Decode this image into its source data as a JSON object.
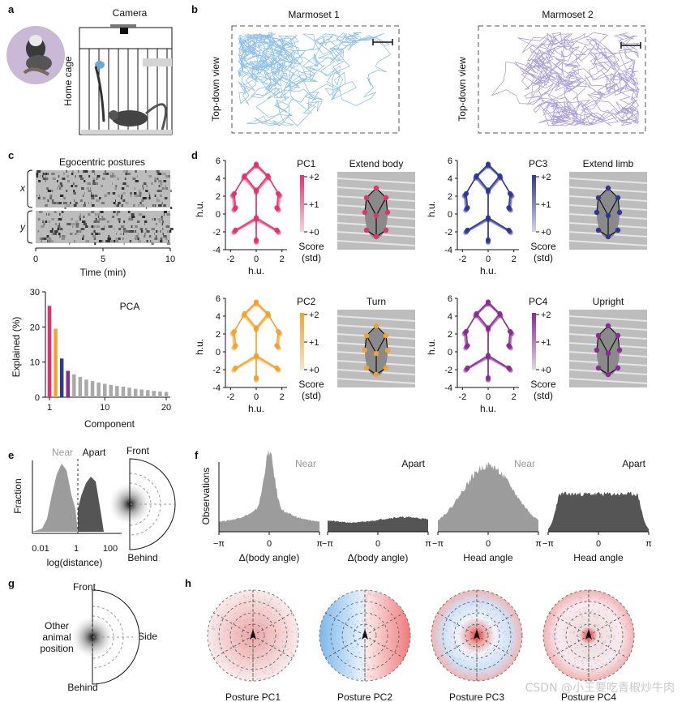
{
  "panels": {
    "a": {
      "letter": "a",
      "camera_label": "Camera",
      "cage_label": "Home cage"
    },
    "b": {
      "letter": "b",
      "titles": [
        "Marmoset 1",
        "Marmoset 2"
      ],
      "view_label": "Top-down view",
      "colors": [
        "#7fb6e3",
        "#9d8fd0"
      ]
    },
    "c": {
      "letter": "c",
      "title": "Egocentric postures",
      "row_labels": [
        "x",
        "y"
      ],
      "x_ticks": [
        "0",
        "5",
        "10"
      ],
      "x_label": "Time (min)"
    },
    "d": {
      "letter": "d",
      "y_label": "h.u.",
      "x_label": "h.u.",
      "y_ticks": [
        "6",
        "4",
        "2",
        "0",
        "-2",
        "-4"
      ],
      "x_ticks": [
        "-2",
        "0",
        "2"
      ],
      "score_label": "Score",
      "std_label": "(std)",
      "score_ticks": [
        "+2",
        "+1",
        "+0"
      ],
      "components": [
        {
          "pc": "PC1",
          "photo_title": "Extend body",
          "color": "#e5316b"
        },
        {
          "pc": "PC3",
          "photo_title": "Extend limb",
          "color": "#2e3794"
        },
        {
          "pc": "PC2",
          "photo_title": "Turn",
          "color": "#f4a22d"
        },
        {
          "pc": "PC4",
          "photo_title": "Upright",
          "color": "#8a2a93"
        }
      ]
    },
    "e": {
      "letter": "e",
      "near_label": "Near",
      "apart_label": "Apart",
      "y_label": "Fraction",
      "x_ticks": [
        "0.01",
        "1",
        "100"
      ],
      "x_label": "log(distance)",
      "front_label": "Front",
      "behind_label": "Behind"
    },
    "f": {
      "letter": "f",
      "y_label": "Observations",
      "panels": [
        {
          "tag": "Near",
          "xlabel": "Δ(body angle)"
        },
        {
          "tag": "Apart",
          "xlabel": "Δ(body angle)"
        },
        {
          "tag": "Near",
          "xlabel": "Head angle"
        },
        {
          "tag": "Apart",
          "xlabel": "Head angle"
        }
      ],
      "x_ticks": [
        "−π",
        "0",
        "π"
      ]
    },
    "g": {
      "letter": "g",
      "front_label": "Front",
      "other_label": [
        "Other",
        "animal",
        "position"
      ],
      "side_label": "Side",
      "behind_label": "Behind"
    },
    "h": {
      "letter": "h",
      "labels": [
        "Posture PC1",
        "Posture PC2",
        "Posture PC3",
        "Posture PC4"
      ]
    }
  },
  "chart_data": [
    {
      "type": "bar",
      "panel": "c-pca",
      "title": "PCA",
      "xlabel": "Component",
      "ylabel": "Explained (%)",
      "ylim": [
        0,
        30
      ],
      "y_ticks": [
        0,
        10,
        20,
        30
      ],
      "x_ticks": [
        1,
        10,
        20
      ],
      "categories": [
        1,
        2,
        3,
        4,
        5,
        6,
        7,
        8,
        9,
        10,
        11,
        12,
        13,
        14,
        15,
        16,
        17,
        18,
        19,
        20
      ],
      "values": [
        26,
        19.5,
        11,
        7.5,
        6.5,
        5.8,
        5,
        4.6,
        4.2,
        3.8,
        3.5,
        3.2,
        3.0,
        2.7,
        2.4,
        2.2,
        2.0,
        1.8,
        1.6,
        1.5
      ],
      "bar_colors": [
        "#e5316b",
        "#f4a22d",
        "#2e3794",
        "#8a2a93"
      ]
    }
  ]
}
